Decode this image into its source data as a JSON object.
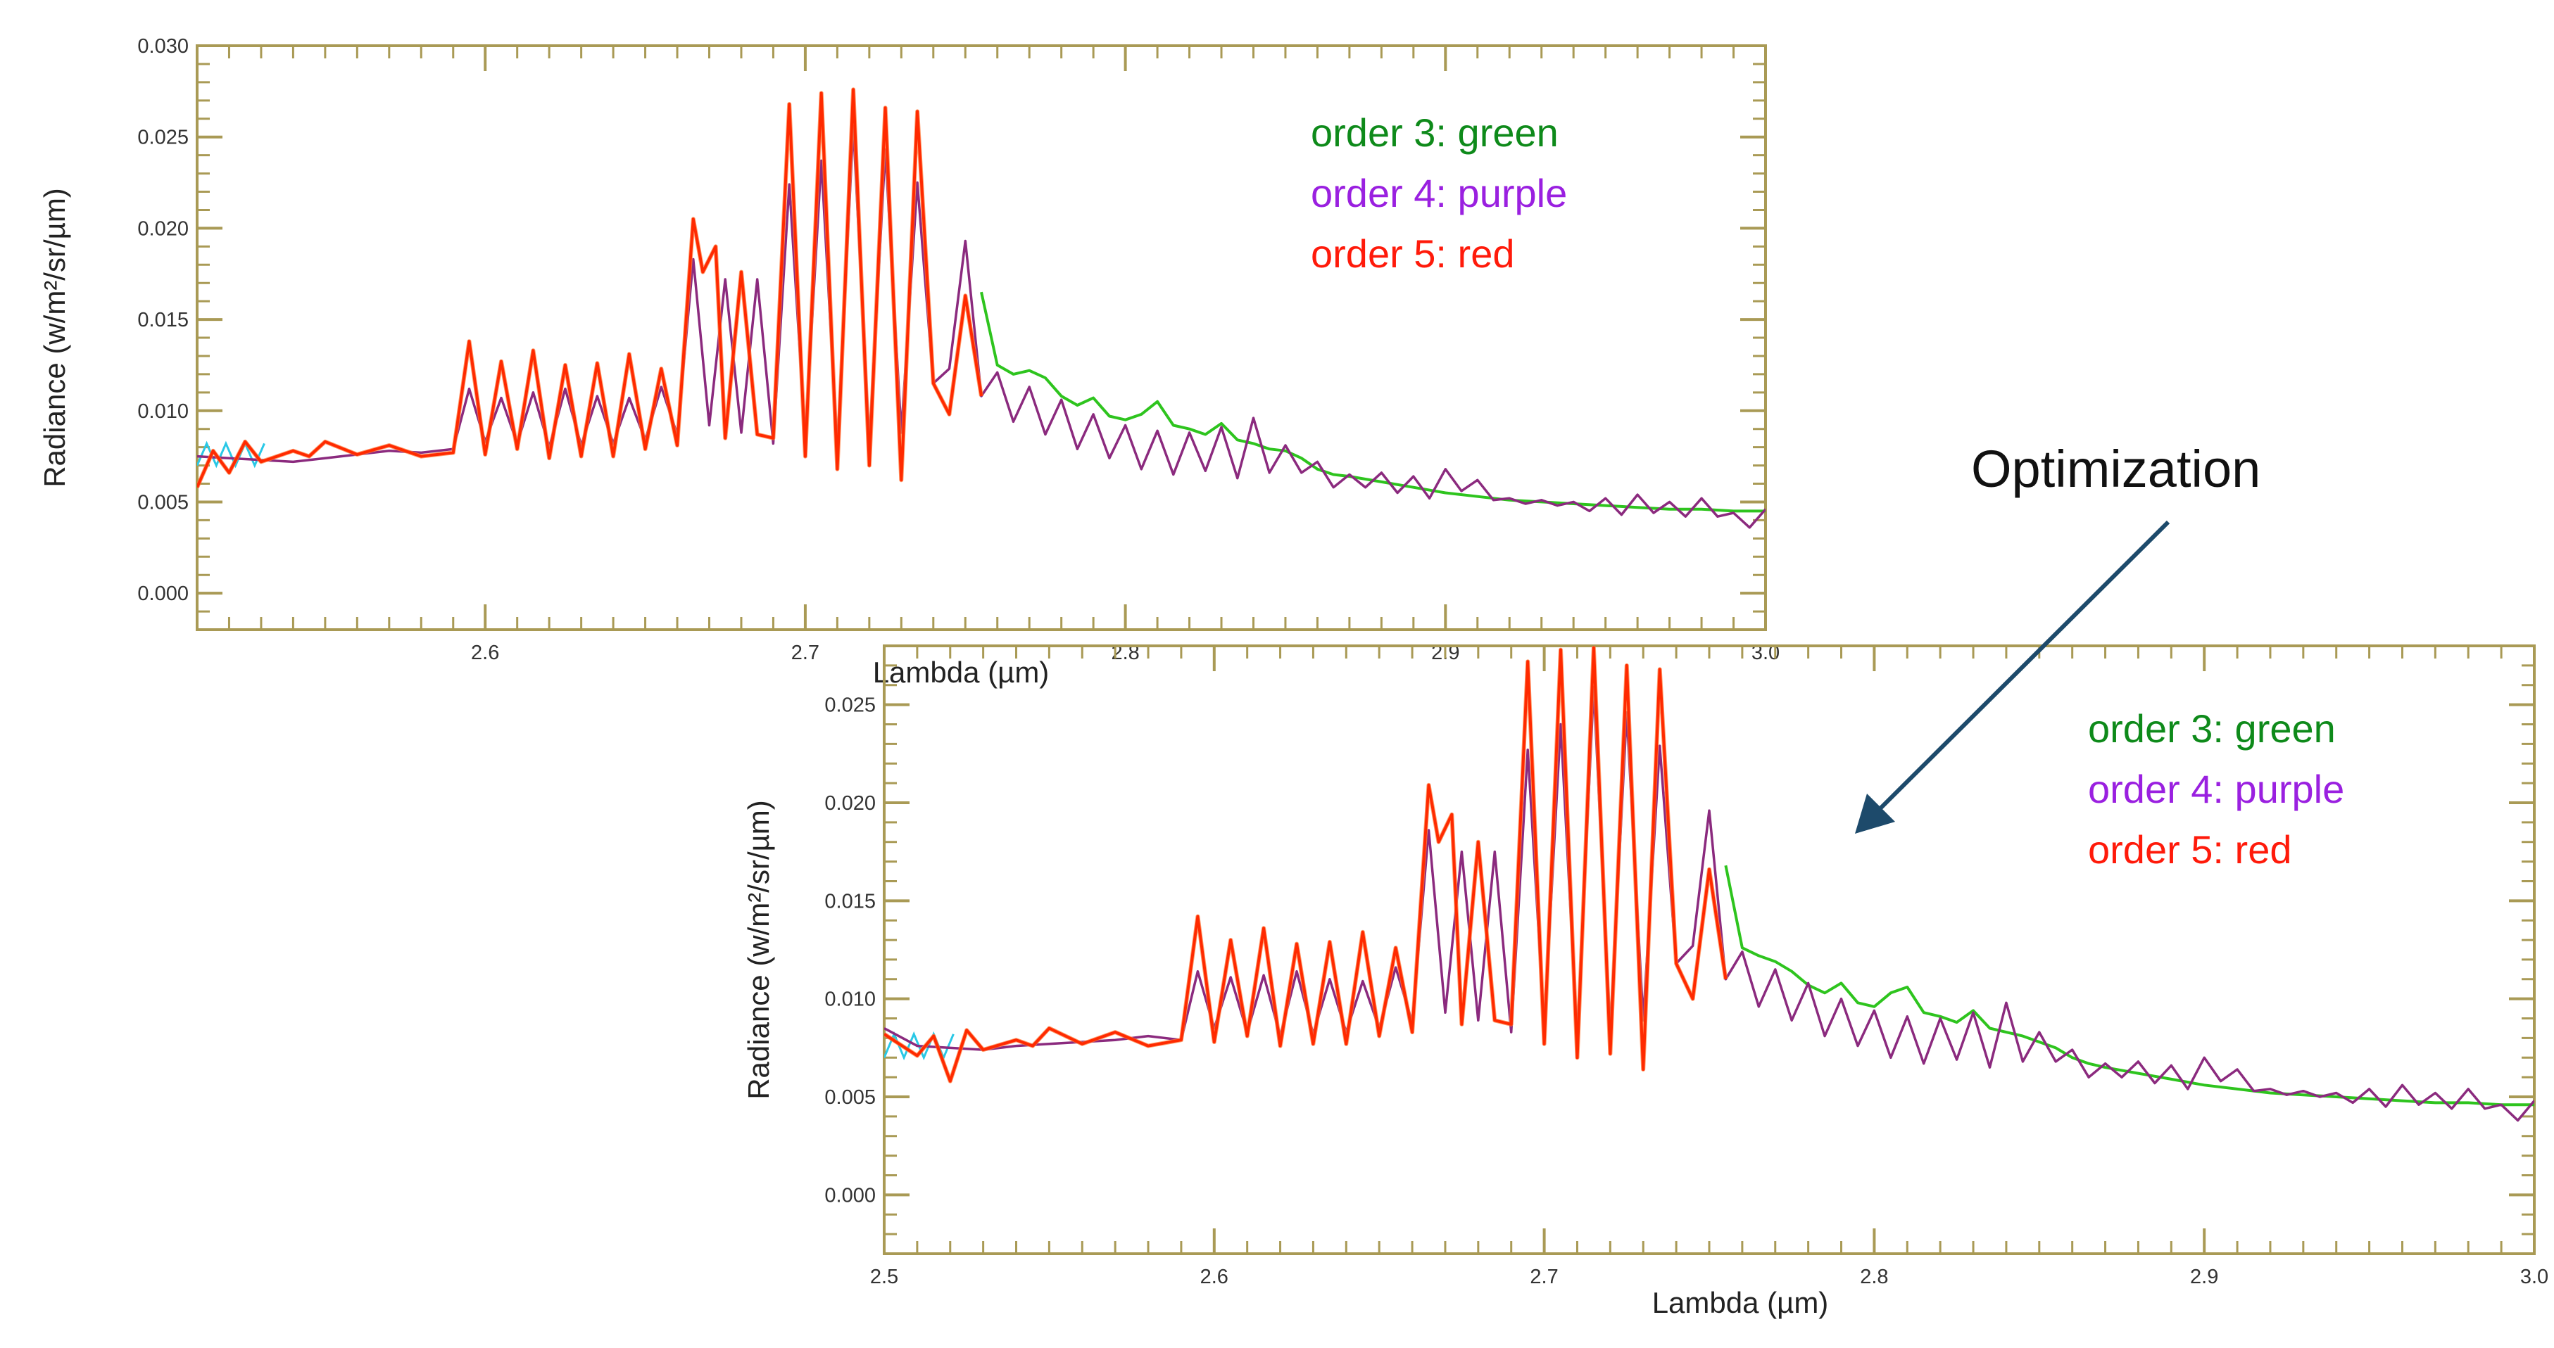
{
  "annotation": {
    "text": "Optimization"
  },
  "colors": {
    "order3": "#2ec41e",
    "order4": "#8b2a7e",
    "order5": "#ff2a00",
    "order5_orange": "#ff7a3a",
    "cyan": "#29c8e6",
    "frame": "#a99a55",
    "legend_green": "#0e8a1a",
    "legend_purple": "#9a20e0",
    "legend_red": "#ff1a0a",
    "arrow": "#1d4a6b"
  },
  "chart_data": [
    {
      "type": "line",
      "xlabel": "Lambda (µm)",
      "ylabel": "Radiance (w/m²/sr/µm)",
      "xlim": [
        2.51,
        3.0
      ],
      "ylim": [
        -0.002,
        0.03
      ],
      "xticks": [
        "2.6",
        "2.7",
        "2.8",
        "2.9",
        "3.0"
      ],
      "xtick_values": [
        2.6,
        2.7,
        2.8,
        2.9,
        3.0
      ],
      "yticks": [
        "0.000",
        "0.005",
        "0.010",
        "0.015",
        "0.020",
        "0.025",
        "0.030"
      ],
      "ytick_values": [
        0.0,
        0.005,
        0.01,
        0.015,
        0.02,
        0.025,
        0.03
      ],
      "legend": [
        "order 3: green",
        "order 4: purple",
        "order 5: red"
      ],
      "legend_position": "top-right",
      "grid": false,
      "series": [
        {
          "name": "order 3: green",
          "x": [
            2.755,
            2.76,
            2.765,
            2.77,
            2.775,
            2.78,
            2.785,
            2.79,
            2.795,
            2.8,
            2.805,
            2.81,
            2.815,
            2.82,
            2.825,
            2.83,
            2.835,
            2.84,
            2.845,
            2.85,
            2.855,
            2.86,
            2.865,
            2.87,
            2.88,
            2.89,
            2.9,
            2.91,
            2.92,
            2.93,
            2.94,
            2.95,
            2.96,
            2.97,
            2.98,
            2.99,
            3.0
          ],
          "y": [
            0.0165,
            0.0125,
            0.012,
            0.0122,
            0.0118,
            0.0108,
            0.0103,
            0.0107,
            0.0097,
            0.0095,
            0.0098,
            0.0105,
            0.0092,
            0.009,
            0.0087,
            0.0093,
            0.0084,
            0.0082,
            0.0079,
            0.0078,
            0.0074,
            0.0068,
            0.0065,
            0.0064,
            0.0061,
            0.0058,
            0.0055,
            0.0053,
            0.0051,
            0.005,
            0.0049,
            0.0048,
            0.0047,
            0.0046,
            0.0046,
            0.0045,
            0.0045
          ]
        },
        {
          "name": "order 4: purple",
          "x": [
            2.51,
            2.52,
            2.53,
            2.54,
            2.55,
            2.56,
            2.57,
            2.58,
            2.59,
            2.595,
            2.6,
            2.605,
            2.61,
            2.615,
            2.62,
            2.625,
            2.63,
            2.635,
            2.64,
            2.645,
            2.65,
            2.655,
            2.66,
            2.665,
            2.67,
            2.675,
            2.68,
            2.685,
            2.69,
            2.695,
            2.7,
            2.705,
            2.71,
            2.715,
            2.72,
            2.725,
            2.73,
            2.735,
            2.74,
            2.745,
            2.75,
            2.755,
            2.76,
            2.765,
            2.77,
            2.775,
            2.78,
            2.785,
            2.79,
            2.795,
            2.8,
            2.805,
            2.81,
            2.815,
            2.82,
            2.825,
            2.83,
            2.835,
            2.84,
            2.845,
            2.85,
            2.855,
            2.86,
            2.865,
            2.87,
            2.875,
            2.88,
            2.885,
            2.89,
            2.895,
            2.9,
            2.905,
            2.91,
            2.915,
            2.92,
            2.925,
            2.93,
            2.935,
            2.94,
            2.945,
            2.95,
            2.955,
            2.96,
            2.965,
            2.97,
            2.975,
            2.98,
            2.985,
            2.99,
            2.995,
            3.0
          ],
          "y": [
            0.0075,
            0.0074,
            0.0073,
            0.0072,
            0.0074,
            0.0076,
            0.0078,
            0.0077,
            0.0079,
            0.0112,
            0.0083,
            0.0107,
            0.0082,
            0.011,
            0.008,
            0.0112,
            0.0081,
            0.0108,
            0.0082,
            0.0107,
            0.0084,
            0.0113,
            0.0087,
            0.0183,
            0.0092,
            0.0172,
            0.0088,
            0.0172,
            0.0082,
            0.0224,
            0.0085,
            0.0237,
            0.0079,
            0.0256,
            0.0082,
            0.0243,
            0.0088,
            0.0225,
            0.0115,
            0.0123,
            0.0193,
            0.0108,
            0.0121,
            0.0094,
            0.0113,
            0.0087,
            0.0106,
            0.0079,
            0.0098,
            0.0074,
            0.0092,
            0.0068,
            0.0089,
            0.0065,
            0.0088,
            0.0067,
            0.0091,
            0.0063,
            0.0096,
            0.0066,
            0.0081,
            0.0066,
            0.0072,
            0.0058,
            0.0065,
            0.0058,
            0.0066,
            0.0055,
            0.0064,
            0.0052,
            0.0068,
            0.0056,
            0.0062,
            0.0051,
            0.0052,
            0.0049,
            0.0051,
            0.0048,
            0.005,
            0.0045,
            0.0052,
            0.0043,
            0.0054,
            0.0044,
            0.005,
            0.0042,
            0.0052,
            0.0042,
            0.0044,
            0.0036,
            0.0046
          ]
        },
        {
          "name": "order 5: red",
          "x": [
            2.51,
            2.515,
            2.52,
            2.525,
            2.53,
            2.54,
            2.545,
            2.55,
            2.56,
            2.57,
            2.58,
            2.59,
            2.595,
            2.6,
            2.605,
            2.61,
            2.615,
            2.62,
            2.625,
            2.63,
            2.635,
            2.64,
            2.645,
            2.65,
            2.655,
            2.66,
            2.665,
            2.668,
            2.672,
            2.675,
            2.68,
            2.685,
            2.69,
            2.695,
            2.7,
            2.705,
            2.71,
            2.715,
            2.72,
            2.725,
            2.73,
            2.735,
            2.74,
            2.745,
            2.75,
            2.755
          ],
          "y": [
            0.0058,
            0.0078,
            0.0066,
            0.0083,
            0.0072,
            0.0078,
            0.0075,
            0.0083,
            0.0076,
            0.0081,
            0.0075,
            0.0077,
            0.0138,
            0.0076,
            0.0127,
            0.0079,
            0.0133,
            0.0074,
            0.0125,
            0.0075,
            0.0126,
            0.0075,
            0.0131,
            0.0079,
            0.0123,
            0.0081,
            0.0205,
            0.0176,
            0.019,
            0.0085,
            0.0176,
            0.0087,
            0.0085,
            0.0268,
            0.0075,
            0.0274,
            0.0068,
            0.0276,
            0.007,
            0.0266,
            0.0062,
            0.0264,
            0.0115,
            0.0098,
            0.0163,
            0.0108
          ]
        }
      ]
    },
    {
      "type": "line",
      "xlabel": "Lambda (µm)",
      "ylabel": "Radiance (w/m²/sr/µm)",
      "xlim": [
        2.5,
        3.0
      ],
      "ylim": [
        -0.003,
        0.028
      ],
      "xticks": [
        "2.5",
        "2.6",
        "2.7",
        "2.8",
        "2.9",
        "3.0"
      ],
      "xtick_values": [
        2.5,
        2.6,
        2.7,
        2.8,
        2.9,
        3.0
      ],
      "yticks": [
        "0.000",
        "0.005",
        "0.010",
        "0.015",
        "0.020",
        "0.025"
      ],
      "ytick_values": [
        0.0,
        0.005,
        0.01,
        0.015,
        0.02,
        0.025
      ],
      "legend": [
        "order 3: green",
        "order 4: purple",
        "order 5: red"
      ],
      "legend_position": "top-right",
      "grid": false,
      "series": [
        {
          "name": "order 3: green",
          "x": [
            2.755,
            2.76,
            2.765,
            2.77,
            2.775,
            2.78,
            2.785,
            2.79,
            2.795,
            2.8,
            2.805,
            2.81,
            2.815,
            2.82,
            2.825,
            2.83,
            2.835,
            2.84,
            2.845,
            2.85,
            2.855,
            2.86,
            2.865,
            2.87,
            2.88,
            2.89,
            2.9,
            2.91,
            2.92,
            2.93,
            2.94,
            2.95,
            2.96,
            2.97,
            2.98,
            2.99,
            3.0
          ],
          "y": [
            0.0168,
            0.0126,
            0.0122,
            0.0119,
            0.0114,
            0.0107,
            0.0103,
            0.0108,
            0.0098,
            0.0096,
            0.0103,
            0.0106,
            0.0093,
            0.0091,
            0.0088,
            0.0094,
            0.0085,
            0.0083,
            0.0081,
            0.0078,
            0.0075,
            0.007,
            0.0067,
            0.0065,
            0.0062,
            0.0059,
            0.0056,
            0.0054,
            0.0052,
            0.0051,
            0.005,
            0.0049,
            0.0048,
            0.0047,
            0.0047,
            0.0046,
            0.0046
          ]
        },
        {
          "name": "order 4: purple",
          "x": [
            2.5,
            2.51,
            2.52,
            2.53,
            2.54,
            2.55,
            2.56,
            2.57,
            2.58,
            2.59,
            2.595,
            2.6,
            2.605,
            2.61,
            2.615,
            2.62,
            2.625,
            2.63,
            2.635,
            2.64,
            2.645,
            2.65,
            2.655,
            2.66,
            2.665,
            2.67,
            2.675,
            2.68,
            2.685,
            2.69,
            2.695,
            2.7,
            2.705,
            2.71,
            2.715,
            2.72,
            2.725,
            2.73,
            2.735,
            2.74,
            2.745,
            2.75,
            2.755,
            2.76,
            2.765,
            2.77,
            2.775,
            2.78,
            2.785,
            2.79,
            2.795,
            2.8,
            2.805,
            2.81,
            2.815,
            2.82,
            2.825,
            2.83,
            2.835,
            2.84,
            2.845,
            2.85,
            2.855,
            2.86,
            2.865,
            2.87,
            2.875,
            2.88,
            2.885,
            2.89,
            2.895,
            2.9,
            2.905,
            2.91,
            2.915,
            2.92,
            2.925,
            2.93,
            2.935,
            2.94,
            2.945,
            2.95,
            2.955,
            2.96,
            2.965,
            2.97,
            2.975,
            2.98,
            2.985,
            2.99,
            2.995,
            3.0
          ],
          "y": [
            0.0085,
            0.0076,
            0.0075,
            0.0074,
            0.0076,
            0.0077,
            0.0078,
            0.0079,
            0.0081,
            0.0079,
            0.0114,
            0.0085,
            0.0111,
            0.0083,
            0.0112,
            0.0081,
            0.0114,
            0.0082,
            0.011,
            0.0083,
            0.0109,
            0.0085,
            0.0116,
            0.0088,
            0.0186,
            0.0093,
            0.0175,
            0.0089,
            0.0175,
            0.0083,
            0.0227,
            0.0086,
            0.024,
            0.008,
            0.0259,
            0.0083,
            0.0246,
            0.0089,
            0.0229,
            0.0118,
            0.0127,
            0.0196,
            0.011,
            0.0124,
            0.0096,
            0.0115,
            0.0089,
            0.0108,
            0.0081,
            0.01,
            0.0076,
            0.0094,
            0.007,
            0.0091,
            0.0067,
            0.009,
            0.0069,
            0.0093,
            0.0065,
            0.0098,
            0.0068,
            0.0083,
            0.0068,
            0.0074,
            0.006,
            0.0067,
            0.006,
            0.0068,
            0.0057,
            0.0066,
            0.0054,
            0.007,
            0.0058,
            0.0064,
            0.0053,
            0.0054,
            0.0051,
            0.0053,
            0.005,
            0.0052,
            0.0047,
            0.0054,
            0.0045,
            0.0056,
            0.0046,
            0.0052,
            0.0044,
            0.0054,
            0.0044,
            0.0046,
            0.0038,
            0.0048
          ]
        },
        {
          "name": "order 5: red",
          "x": [
            2.5,
            2.51,
            2.515,
            2.52,
            2.525,
            2.53,
            2.54,
            2.545,
            2.55,
            2.56,
            2.57,
            2.58,
            2.59,
            2.595,
            2.6,
            2.605,
            2.61,
            2.615,
            2.62,
            2.625,
            2.63,
            2.635,
            2.64,
            2.645,
            2.65,
            2.655,
            2.66,
            2.665,
            2.668,
            2.672,
            2.675,
            2.68,
            2.685,
            2.69,
            2.695,
            2.7,
            2.705,
            2.71,
            2.715,
            2.72,
            2.725,
            2.73,
            2.735,
            2.74,
            2.745,
            2.75,
            2.755
          ],
          "y": [
            0.0082,
            0.0071,
            0.0081,
            0.0058,
            0.0084,
            0.0074,
            0.0079,
            0.0076,
            0.0085,
            0.0077,
            0.0083,
            0.0076,
            0.0079,
            0.0142,
            0.0078,
            0.013,
            0.0081,
            0.0136,
            0.0076,
            0.0128,
            0.0077,
            0.0129,
            0.0077,
            0.0134,
            0.0081,
            0.0126,
            0.0083,
            0.0209,
            0.018,
            0.0194,
            0.0087,
            0.018,
            0.0089,
            0.0087,
            0.0272,
            0.0077,
            0.0278,
            0.007,
            0.0279,
            0.0072,
            0.027,
            0.0064,
            0.0268,
            0.0118,
            0.01,
            0.0166,
            0.011
          ]
        }
      ]
    }
  ]
}
